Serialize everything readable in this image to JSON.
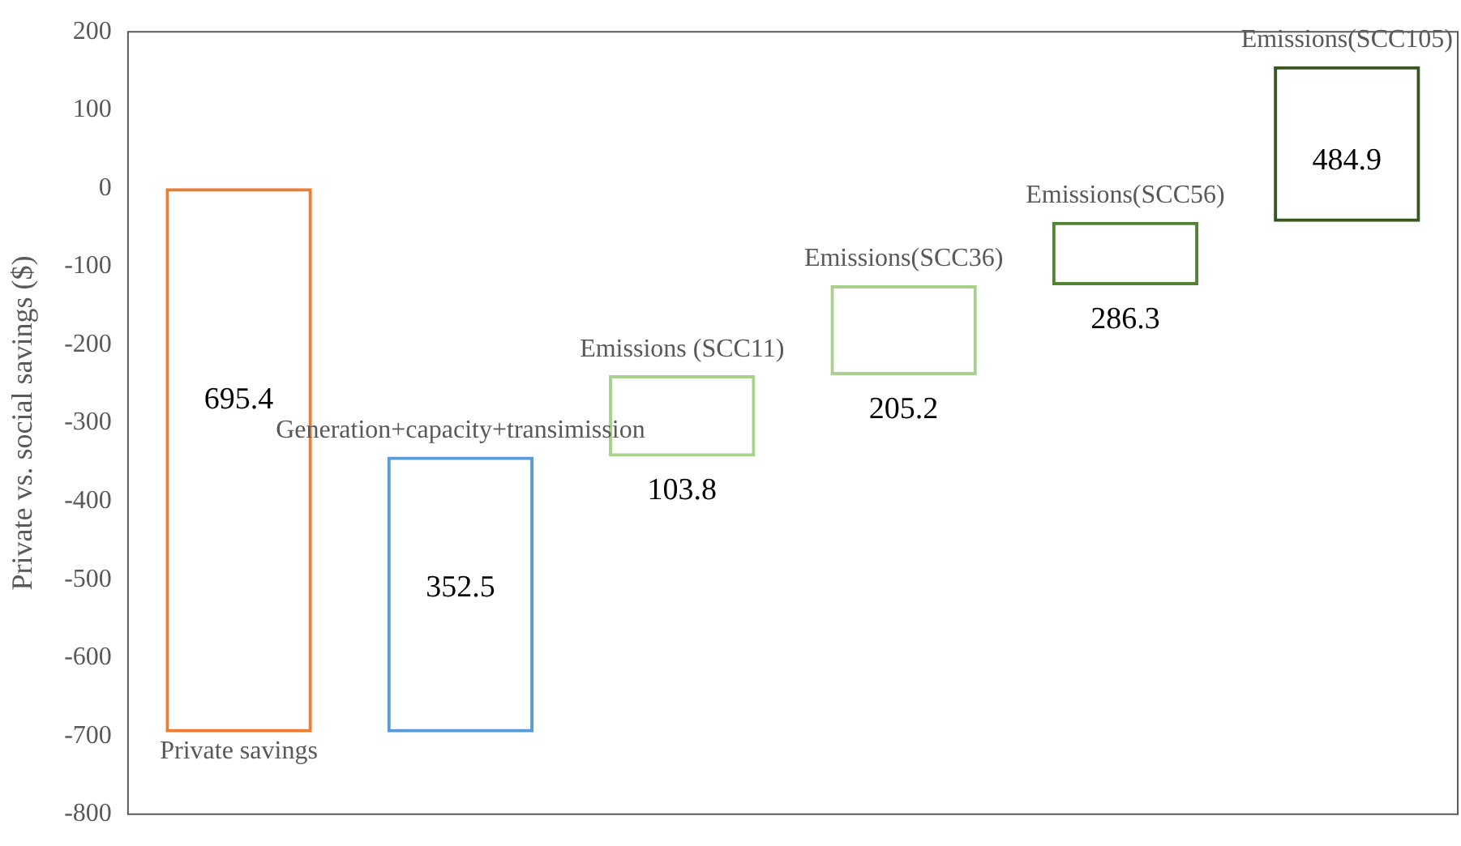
{
  "chart_data": {
    "type": "bar",
    "ylabel": "Private vs. social savings ($)",
    "categories": [
      "Private savings",
      "Generation+capacity+transimission",
      "Emissions (SCC11)",
      "Emissions(SCC36)",
      "Emissions(SCC56)",
      "Emissions(SCC105)"
    ],
    "base": [
      -695.4,
      -695.4,
      -343,
      -239,
      -124,
      -43
    ],
    "values": [
      695.4,
      352.5,
      104,
      115,
      81,
      199
    ],
    "colors": [
      "#ed7d31",
      "#5b9bd5",
      "#a9d18e",
      "#a9d18e",
      "#548235",
      "#375623"
    ],
    "ylim": [
      -800,
      200
    ],
    "yticks": [
      -800,
      -700,
      -600,
      -500,
      -400,
      -300,
      -200,
      -100,
      0,
      100,
      200
    ],
    "annotations": [
      "695.4",
      "352.5",
      "103.8",
      "205.2",
      "286.3",
      "484.9"
    ],
    "tick_labels": "y"
  }
}
